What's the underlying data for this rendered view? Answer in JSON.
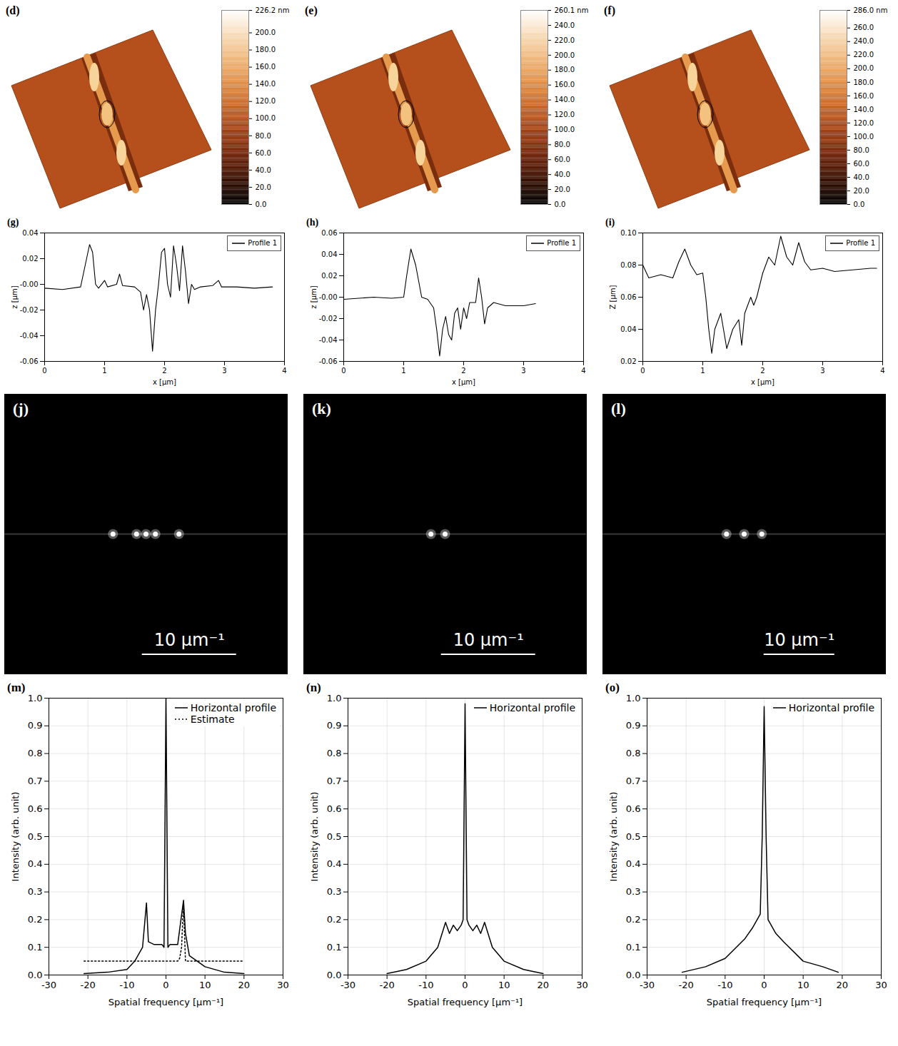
{
  "chart_data": [
    {
      "type": "colorbar",
      "panel": "(d)",
      "colorbar": {
        "range": [
          0,
          226.2
        ],
        "ticks": [
          {
            "value": 0,
            "label": "0.0"
          },
          {
            "value": 20,
            "label": "20.0"
          },
          {
            "value": 40,
            "label": "40.0"
          },
          {
            "value": 60,
            "label": "60.0"
          },
          {
            "value": 80,
            "label": "80.0"
          },
          {
            "value": 100,
            "label": "100.0"
          },
          {
            "value": 120,
            "label": "120.0"
          },
          {
            "value": 140,
            "label": "140.0"
          },
          {
            "value": 160,
            "label": "160.0"
          },
          {
            "value": 180,
            "label": "180.0"
          },
          {
            "value": 200,
            "label": "200.0"
          },
          {
            "value": 226.2,
            "label": "226.2 nm"
          }
        ]
      }
    },
    {
      "type": "colorbar",
      "panel": "(e)",
      "colorbar": {
        "range": [
          0,
          260.1
        ],
        "ticks": [
          {
            "value": 0,
            "label": "0.0"
          },
          {
            "value": 20,
            "label": "20.0"
          },
          {
            "value": 40,
            "label": "40.0"
          },
          {
            "value": 60,
            "label": "60.0"
          },
          {
            "value": 80,
            "label": "80.0"
          },
          {
            "value": 100,
            "label": "100.0"
          },
          {
            "value": 120,
            "label": "120.0"
          },
          {
            "value": 140,
            "label": "140.0"
          },
          {
            "value": 160,
            "label": "160.0"
          },
          {
            "value": 180,
            "label": "180.0"
          },
          {
            "value": 200,
            "label": "200.0"
          },
          {
            "value": 220,
            "label": "220.0"
          },
          {
            "value": 240,
            "label": "240.0"
          },
          {
            "value": 260.1,
            "label": "260.1 nm"
          }
        ]
      }
    },
    {
      "type": "colorbar",
      "panel": "(f)",
      "colorbar": {
        "range": [
          0,
          286
        ],
        "ticks": [
          {
            "value": 0,
            "label": "0.0"
          },
          {
            "value": 20,
            "label": "20.0"
          },
          {
            "value": 40,
            "label": "40.0"
          },
          {
            "value": 60,
            "label": "60.0"
          },
          {
            "value": 80,
            "label": "80.0"
          },
          {
            "value": 100,
            "label": "100.0"
          },
          {
            "value": 120,
            "label": "120.0"
          },
          {
            "value": 140,
            "label": "140.0"
          },
          {
            "value": 160,
            "label": "160.0"
          },
          {
            "value": 180,
            "label": "180.0"
          },
          {
            "value": 200,
            "label": "200.0"
          },
          {
            "value": 220,
            "label": "220.0"
          },
          {
            "value": 240,
            "label": "240.0"
          },
          {
            "value": 260,
            "label": "260.0"
          },
          {
            "value": 286,
            "label": "286.0 nm"
          }
        ]
      }
    },
    {
      "type": "line",
      "panel": "(g)",
      "xlabel": "x [µm]",
      "ylabel": "z [µm]",
      "legend": "top-right",
      "grid": false,
      "xlim": [
        0,
        4
      ],
      "ylim": [
        -0.06,
        0.04
      ],
      "xticks": [
        0,
        1,
        2,
        3,
        4
      ],
      "yticks": [
        -0.06,
        -0.04,
        -0.02,
        {
          "value": 0,
          "label": "-0.00"
        },
        0.02,
        0.04
      ],
      "x": [
        0,
        0.3,
        0.6,
        0.7,
        0.75,
        0.8,
        0.85,
        0.9,
        1.0,
        1.05,
        1.2,
        1.25,
        1.3,
        1.5,
        1.6,
        1.65,
        1.7,
        1.75,
        1.8,
        1.85,
        1.9,
        1.95,
        2.0,
        2.05,
        2.1,
        2.15,
        2.2,
        2.25,
        2.3,
        2.35,
        2.4,
        2.45,
        2.5,
        2.6,
        2.8,
        2.9,
        2.95,
        3.2,
        3.5,
        3.8
      ],
      "series": [
        {
          "name": "Profile 1",
          "color": "#000000",
          "values": [
            -0.003,
            -0.004,
            -0.002,
            0.02,
            0.031,
            0.025,
            0.0,
            -0.003,
            0.003,
            -0.002,
            0.0,
            0.008,
            -0.001,
            -0.002,
            -0.006,
            -0.02,
            -0.008,
            -0.02,
            -0.052,
            -0.02,
            0.0,
            0.025,
            0.028,
            0.0,
            -0.01,
            0.03,
            0.015,
            -0.005,
            0.03,
            0.01,
            -0.015,
            0.0,
            -0.004,
            -0.002,
            -0.001,
            0.003,
            -0.002,
            -0.002,
            -0.003,
            -0.002
          ]
        }
      ]
    },
    {
      "type": "line",
      "panel": "(h)",
      "xlabel": "x [µm]",
      "ylabel": "z [µm]",
      "legend": "top-right",
      "grid": false,
      "xlim": [
        0,
        4
      ],
      "ylim": [
        -0.06,
        0.06
      ],
      "xticks": [
        0,
        1,
        2,
        3,
        4
      ],
      "yticks": [
        -0.06,
        -0.04,
        -0.02,
        {
          "value": 0,
          "label": "-0.00"
        },
        0.02,
        0.04,
        0.06
      ],
      "x": [
        0,
        0.5,
        0.8,
        1.0,
        1.05,
        1.12,
        1.2,
        1.3,
        1.4,
        1.5,
        1.55,
        1.6,
        1.65,
        1.7,
        1.75,
        1.8,
        1.85,
        1.9,
        1.95,
        2.0,
        2.05,
        2.1,
        2.2,
        2.25,
        2.3,
        2.35,
        2.4,
        2.5,
        2.7,
        3.0,
        3.2
      ],
      "series": [
        {
          "name": "Profile 1",
          "color": "#000000",
          "values": [
            -0.002,
            0.0,
            -0.001,
            0.0,
            0.02,
            0.045,
            0.03,
            0.0,
            -0.002,
            -0.01,
            -0.03,
            -0.055,
            -0.03,
            -0.018,
            -0.035,
            -0.04,
            -0.015,
            -0.01,
            -0.03,
            -0.01,
            -0.02,
            -0.005,
            -0.005,
            0.018,
            0.0,
            -0.025,
            -0.01,
            -0.005,
            -0.008,
            -0.008,
            -0.006
          ]
        }
      ]
    },
    {
      "type": "line",
      "panel": "(i)",
      "xlabel": "x [µm]",
      "ylabel": "Z [µm]",
      "legend": "top-right",
      "grid": false,
      "xlim": [
        0,
        4
      ],
      "ylim": [
        0.02,
        0.1
      ],
      "xticks": [
        0,
        1,
        2,
        3,
        4
      ],
      "yticks": [
        0.02,
        0.04,
        0.06,
        0.08,
        {
          "value": 0.1,
          "label": "0.10"
        }
      ],
      "x": [
        0,
        0.1,
        0.3,
        0.5,
        0.6,
        0.7,
        0.8,
        0.9,
        1.0,
        1.05,
        1.1,
        1.15,
        1.2,
        1.3,
        1.4,
        1.5,
        1.6,
        1.65,
        1.7,
        1.8,
        1.85,
        1.9,
        2.0,
        2.1,
        2.2,
        2.3,
        2.4,
        2.5,
        2.6,
        2.7,
        2.8,
        3.0,
        3.2,
        3.5,
        3.8,
        3.9
      ],
      "series": [
        {
          "name": "Profile 1",
          "color": "#000000",
          "values": [
            0.08,
            0.072,
            0.074,
            0.072,
            0.082,
            0.09,
            0.08,
            0.074,
            0.075,
            0.06,
            0.04,
            0.025,
            0.04,
            0.05,
            0.028,
            0.04,
            0.046,
            0.03,
            0.05,
            0.06,
            0.055,
            0.06,
            0.075,
            0.085,
            0.08,
            0.098,
            0.085,
            0.08,
            0.094,
            0.082,
            0.077,
            0.078,
            0.076,
            0.077,
            0.078,
            0.078
          ]
        }
      ]
    },
    {
      "type": "image",
      "panel": "(j)",
      "xlim": [
        -15,
        15
      ],
      "ylim": [
        -15,
        15
      ],
      "spots": {
        "x": [
          -3.5,
          -1,
          0,
          1,
          3.5
        ],
        "y": [
          0,
          0,
          0,
          0,
          0
        ]
      },
      "scale_bar": {
        "value": 10,
        "label": "10 µm⁻¹"
      }
    },
    {
      "type": "image",
      "panel": "(k)",
      "xlim": [
        -15,
        15
      ],
      "ylim": [
        -15,
        15
      ],
      "spots": {
        "x": [
          -1.5,
          0
        ],
        "y": [
          0,
          0
        ]
      },
      "scale_bar": {
        "value": 10,
        "label": "10 µm⁻¹"
      }
    },
    {
      "type": "image",
      "panel": "(l)",
      "xlim": [
        -20,
        20
      ],
      "ylim": [
        -20,
        20
      ],
      "spots": {
        "x": [
          -2.5,
          0,
          2.5
        ],
        "y": [
          0,
          0,
          0
        ]
      },
      "scale_bar": {
        "value": 10,
        "label": "10 µm⁻¹"
      }
    },
    {
      "type": "line",
      "panel": "(m)",
      "xlabel": "Spatial frequency [µm⁻¹]",
      "ylabel": "Intensity (arb. unit)",
      "legend": "top-right",
      "grid": true,
      "xlim": [
        -30,
        30
      ],
      "ylim": [
        0,
        1
      ],
      "xticks": [
        -30,
        -20,
        -10,
        0,
        10,
        20,
        30
      ],
      "yticks": [
        {
          "value": 0,
          "label": "0.0"
        },
        0.1,
        0.2,
        0.3,
        0.4,
        0.5,
        0.6,
        0.7,
        0.8,
        0.9,
        {
          "value": 1,
          "label": "1.0"
        }
      ],
      "series": [
        {
          "name": "Horizontal profile",
          "color": "#000000",
          "line_style": "solid",
          "x": [
            -21,
            -15,
            -10,
            -8,
            -6,
            -5,
            -4.5,
            -3,
            -1,
            -0.5,
            0,
            0.5,
            1,
            3,
            4.5,
            5,
            6,
            8,
            10,
            15,
            20
          ],
          "values": [
            0.005,
            0.01,
            0.02,
            0.05,
            0.1,
            0.26,
            0.12,
            0.11,
            0.11,
            0.1,
            1.0,
            0.1,
            0.11,
            0.11,
            0.27,
            0.15,
            0.07,
            0.05,
            0.03,
            0.01,
            0.005
          ]
        },
        {
          "name": "Estimate",
          "color": "#000000",
          "line_style": "dotted",
          "x": [
            -21,
            3,
            3.5,
            4,
            4.3,
            4.5,
            5,
            20
          ],
          "values": [
            0.05,
            0.05,
            0.06,
            0.1,
            0.2,
            0.25,
            0.05,
            0.05
          ]
        }
      ]
    },
    {
      "type": "line",
      "panel": "(n)",
      "xlabel": "Spatial frequency [µm⁻¹]",
      "ylabel": "Intensity (arb. unit)",
      "legend": "top-right",
      "grid": true,
      "xlim": [
        -30,
        30
      ],
      "ylim": [
        0,
        1
      ],
      "xticks": [
        -30,
        -20,
        -10,
        0,
        10,
        20,
        30
      ],
      "yticks": [
        {
          "value": 0,
          "label": "0.0"
        },
        0.1,
        0.2,
        0.3,
        0.4,
        0.5,
        0.6,
        0.7,
        0.8,
        0.9,
        {
          "value": 1,
          "label": "1.0"
        }
      ],
      "series": [
        {
          "name": "Horizontal profile",
          "color": "#000000",
          "line_style": "solid",
          "x": [
            -20,
            -15,
            -10,
            -7,
            -5,
            -4,
            -3,
            -2,
            -1,
            -0.5,
            0,
            0.5,
            1,
            2,
            3,
            4,
            5,
            7,
            10,
            15,
            20
          ],
          "values": [
            0.005,
            0.02,
            0.05,
            0.1,
            0.19,
            0.15,
            0.18,
            0.16,
            0.18,
            0.2,
            0.98,
            0.2,
            0.18,
            0.16,
            0.18,
            0.15,
            0.19,
            0.1,
            0.05,
            0.02,
            0.005
          ]
        }
      ]
    },
    {
      "type": "line",
      "panel": "(o)",
      "xlabel": "Spatial frequency [µm⁻¹]",
      "ylabel": "Intensity (arb. unit)",
      "legend": "top-right",
      "grid": true,
      "xlim": [
        -30,
        30
      ],
      "ylim": [
        0,
        1
      ],
      "xticks": [
        -30,
        -20,
        -10,
        0,
        10,
        20,
        30
      ],
      "yticks": [
        {
          "value": 0,
          "label": "0.0"
        },
        0.1,
        0.2,
        0.3,
        0.4,
        0.5,
        0.6,
        0.7,
        0.8,
        0.9,
        {
          "value": 1,
          "label": "1.0"
        }
      ],
      "series": [
        {
          "name": "Horizontal profile",
          "color": "#000000",
          "line_style": "solid",
          "x": [
            -21,
            -15,
            -10,
            -5,
            -3,
            -1,
            -0.5,
            0,
            0.5,
            1,
            3,
            5,
            10,
            15,
            19
          ],
          "values": [
            0.01,
            0.03,
            0.06,
            0.13,
            0.17,
            0.22,
            0.5,
            0.97,
            0.5,
            0.2,
            0.15,
            0.12,
            0.05,
            0.03,
            0.01
          ]
        }
      ]
    }
  ]
}
